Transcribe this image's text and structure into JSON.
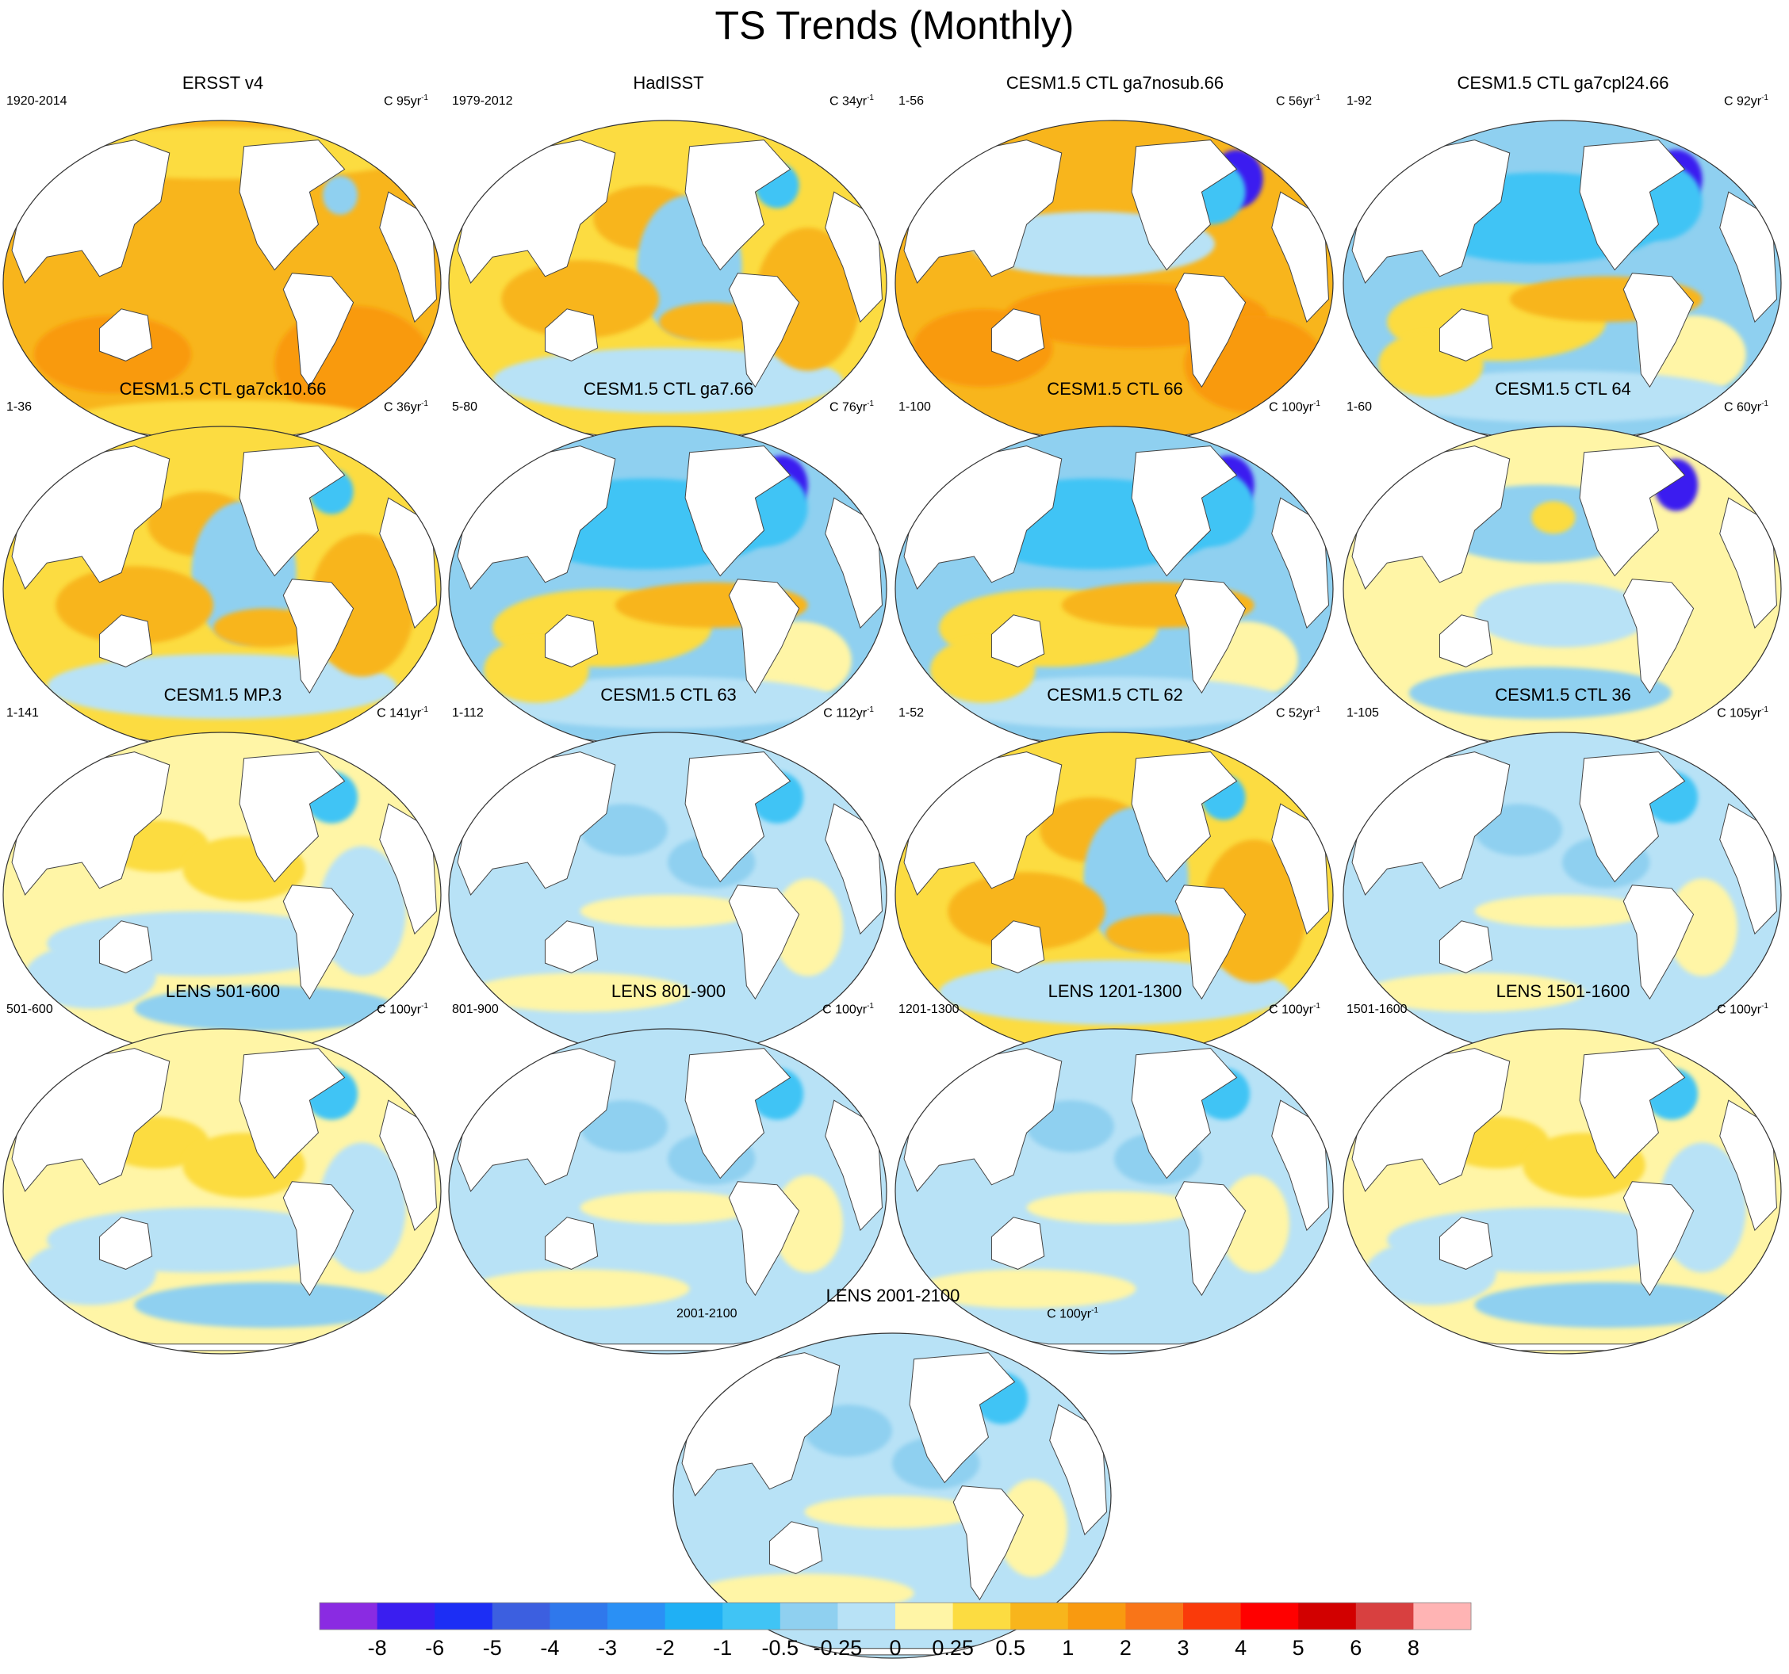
{
  "figure": {
    "title": "TS Trends (Monthly)"
  },
  "panels": [
    {
      "title": "ERSST v4",
      "left": "1920-2014",
      "right_prefix": "C 95yr",
      "right_sup": "-1",
      "pattern": "warm_strong"
    },
    {
      "title": "HadISST",
      "left": "1979-2012",
      "right_prefix": "C 34yr",
      "right_sup": "-1",
      "pattern": "warm_mixed"
    },
    {
      "title": "CESM1.5 CTL ga7nosub.66",
      "left": "1-56",
      "right_prefix": "C 56yr",
      "right_sup": "-1",
      "pattern": "warm_strong_natl_cold"
    },
    {
      "title": "CESM1.5 CTL ga7cpl24.66",
      "left": "1-92",
      "right_prefix": "C 92yr",
      "right_sup": "-1",
      "pattern": "cool_north_warm_south"
    },
    {
      "title": "CESM1.5 CTL ga7ck10.66",
      "left": "1-36",
      "right_prefix": "C 36yr",
      "right_sup": "-1",
      "pattern": "warm_mixed"
    },
    {
      "title": "CESM1.5 CTL ga7.66",
      "left": "5-80",
      "right_prefix": "C 76yr",
      "right_sup": "-1",
      "pattern": "cool_north_warm_south"
    },
    {
      "title": "CESM1.5 CTL 66",
      "left": "1-100",
      "right_prefix": "C 100yr",
      "right_sup": "-1",
      "pattern": "cool_north_warm_south"
    },
    {
      "title": "CESM1.5 CTL 64",
      "left": "1-60",
      "right_prefix": "C 60yr",
      "right_sup": "-1",
      "pattern": "mixed_natl_cold"
    },
    {
      "title": "CESM1.5 MP.3",
      "left": "1-141",
      "right_prefix": "C 141yr",
      "right_sup": "-1",
      "pattern": "light_mixed"
    },
    {
      "title": "CESM1.5 CTL 63",
      "left": "1-112",
      "right_prefix": "C 112yr",
      "right_sup": "-1",
      "pattern": "light_cool"
    },
    {
      "title": "CESM1.5 CTL 62",
      "left": "1-52",
      "right_prefix": "C 52yr",
      "right_sup": "-1",
      "pattern": "warm_mixed"
    },
    {
      "title": "CESM1.5 CTL 36",
      "left": "1-105",
      "right_prefix": "C 105yr",
      "right_sup": "-1",
      "pattern": "light_cool"
    },
    {
      "title": "LENS 501-600",
      "left": "501-600",
      "right_prefix": "C 100yr",
      "right_sup": "-1",
      "pattern": "light_mixed"
    },
    {
      "title": "LENS 801-900",
      "left": "801-900",
      "right_prefix": "C 100yr",
      "right_sup": "-1",
      "pattern": "light_cool"
    },
    {
      "title": "LENS 1201-1300",
      "left": "1201-1300",
      "right_prefix": "C 100yr",
      "right_sup": "-1",
      "pattern": "light_cool"
    },
    {
      "title": "LENS 1501-1600",
      "left": "1501-1600",
      "right_prefix": "C 100yr",
      "right_sup": "-1",
      "pattern": "light_mixed"
    },
    {
      "title": "LENS 2001-2100",
      "left": "2001-2100",
      "right_prefix": "C 100yr",
      "right_sup": "-1",
      "pattern": "light_cool"
    }
  ],
  "chart_data": {
    "type": "heatmap",
    "title": "TS Trends (Monthly)",
    "projection": "Robinson (global, Pacific-centered)",
    "colorbar": {
      "levels": [
        "-8",
        "-6",
        "-5",
        "-4",
        "-3",
        "-2",
        "-1",
        "-0.5",
        "-0.25",
        "0",
        "0.25",
        "0.5",
        "1",
        "2",
        "3",
        "4",
        "5",
        "6",
        "8"
      ],
      "colors": [
        "#8a2be2",
        "#3a1ef0",
        "#1c2ef5",
        "#3c5fe0",
        "#2f78ec",
        "#2a90f5",
        "#1fb0f5",
        "#40c4f5",
        "#8fd0f0",
        "#b8e2f6",
        "#fff5a6",
        "#fcdc41",
        "#f8b51c",
        "#f99a10",
        "#f97518",
        "#fa3a0a",
        "#ff0000",
        "#d20000",
        "#d84040",
        "#ffb4b4"
      ]
    }
  }
}
